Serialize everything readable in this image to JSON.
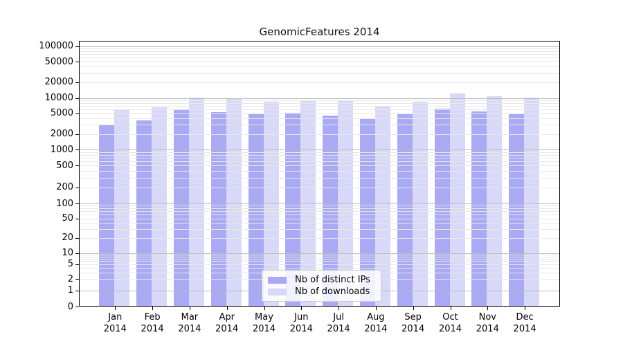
{
  "chart_data": {
    "type": "bar",
    "title": "GenomicFeatures 2014",
    "year": "2014",
    "months": [
      "Jan",
      "Feb",
      "Mar",
      "Apr",
      "May",
      "Jun",
      "Jul",
      "Aug",
      "Sep",
      "Oct",
      "Nov",
      "Dec"
    ],
    "series": [
      {
        "name": "Nb of distinct IPs",
        "color": "#a9a9f4",
        "values": [
          3050,
          3700,
          5900,
          5300,
          4800,
          5200,
          4600,
          3900,
          5000,
          6200,
          5400,
          4800
        ]
      },
      {
        "name": "Nb of downloads",
        "color": "#d8d8f9",
        "values": [
          5900,
          6500,
          10100,
          9900,
          8500,
          9000,
          8900,
          7000,
          8400,
          12200,
          10800,
          10100
        ]
      }
    ],
    "yticks": [
      0,
      1,
      2,
      5,
      10,
      20,
      50,
      100,
      200,
      500,
      1000,
      2000,
      5000,
      10000,
      20000,
      50000,
      100000
    ],
    "ylim": [
      0,
      100000
    ],
    "yscale": "log (symlog near zero)",
    "grid": "horizontal log minor + major gridlines",
    "legend_position": "inside lower-center"
  },
  "style": {
    "grid_minor_color": "#e8e8e8",
    "grid_major_color": "#bbbbbb",
    "axis_color": "#000000",
    "background": "#ffffff"
  }
}
